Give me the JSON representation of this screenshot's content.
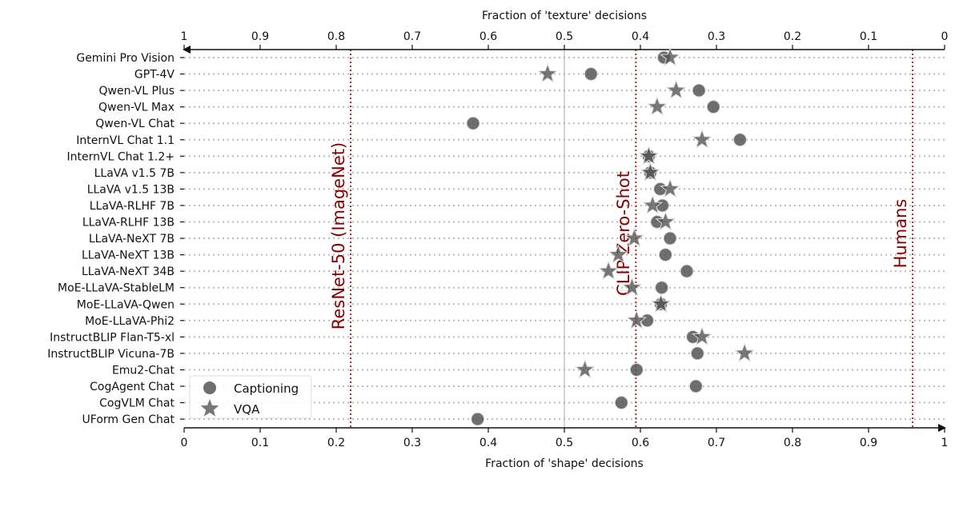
{
  "chart_data": {
    "type": "scatter",
    "xlabel": "Fraction of 'shape' decisions",
    "x2label": "Fraction of 'texture' decisions",
    "xlim": [
      0,
      1
    ],
    "x2lim": [
      1,
      0
    ],
    "xticks": [
      "0",
      "0.1",
      "0.2",
      "0.3",
      "0.4",
      "0.5",
      "0.6",
      "0.7",
      "0.8",
      "0.9",
      "1"
    ],
    "x2ticks": [
      "1",
      "0.9",
      "0.8",
      "0.7",
      "0.6",
      "0.5",
      "0.4",
      "0.3",
      "0.2",
      "0.1",
      "0"
    ],
    "grid": "horizontal dotted",
    "legend_position": "bottom-left",
    "categories": [
      "Gemini Pro Vision",
      "GPT-4V",
      "Qwen-VL Plus",
      "Qwen-VL Max",
      "Qwen-VL Chat",
      "InternVL Chat 1.1",
      "InternVL Chat 1.2+",
      "LLaVA v1.5 7B",
      "LLaVA v1.5 13B",
      "LLaVA-RLHF 7B",
      "LLaVA-RLHF 13B",
      "LLaVA-NeXT 7B",
      "LLaVA-NeXT 13B",
      "LLaVA-NeXT 34B",
      "MoE-LLaVA-StableLM",
      "MoE-LLaVA-Qwen",
      "MoE-LLaVA-Phi2",
      "InstructBLIP Flan-T5-xl",
      "InstructBLIP Vicuna-7B",
      "Emu2-Chat",
      "CogAgent Chat",
      "CogVLM Chat",
      "UForm Gen Chat"
    ],
    "series": [
      {
        "name": "Captioning",
        "marker": "circle",
        "color": "#555555",
        "values": [
          0.631,
          0.535,
          0.677,
          0.696,
          0.38,
          0.731,
          0.611,
          0.613,
          0.626,
          0.629,
          0.622,
          0.639,
          0.633,
          0.661,
          0.628,
          0.627,
          0.609,
          0.669,
          0.675,
          0.595,
          0.673,
          0.575,
          0.386
        ]
      },
      {
        "name": "VQA",
        "marker": "star",
        "color": "#555555",
        "values": [
          0.639,
          0.478,
          0.647,
          0.622,
          null,
          0.681,
          0.611,
          0.613,
          0.639,
          0.616,
          0.633,
          0.592,
          0.571,
          0.558,
          0.589,
          0.627,
          0.595,
          0.681,
          0.737,
          0.527,
          null,
          null,
          null
        ]
      }
    ],
    "reference_lines": [
      {
        "label": "ResNet-50 (ImageNet)",
        "x": 0.219,
        "color": "#8b0000"
      },
      {
        "label": "CLIP Zero-Shot",
        "x": 0.594,
        "color": "#8b0000"
      },
      {
        "label": "Humans",
        "x": 0.958,
        "color": "#8b0000"
      }
    ],
    "midline_x": 0.5
  }
}
